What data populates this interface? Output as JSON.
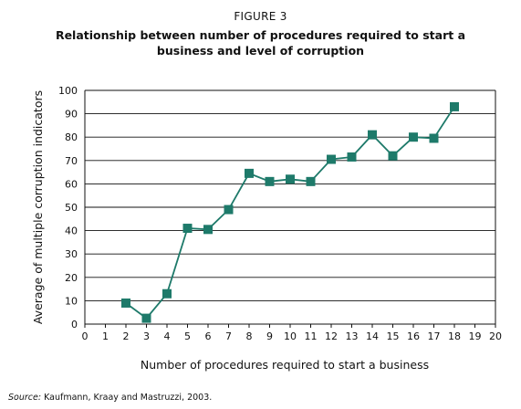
{
  "figure_label": "FIGURE 3",
  "title": "Relationship between number of procedures required to start a business and level of corruption",
  "source_label": "Source:",
  "source_text": "Kaufmann, Kraay and Mastruzzi, 2003.",
  "chart_data": {
    "type": "line",
    "title": "Relationship between number of procedures required to start a business and level of corruption",
    "xlabel": "Number of procedures required to start a business",
    "ylabel": "Average of multiple corruption indicators",
    "xlim": [
      0,
      20
    ],
    "ylim": [
      0,
      100
    ],
    "x_ticks": [
      0,
      1,
      2,
      3,
      4,
      5,
      6,
      7,
      8,
      9,
      10,
      11,
      12,
      13,
      14,
      15,
      16,
      17,
      18,
      19,
      20
    ],
    "y_ticks": [
      0,
      10,
      20,
      30,
      40,
      50,
      60,
      70,
      80,
      90,
      100
    ],
    "grid": "horizontal",
    "series": [
      {
        "x": [
          2,
          3,
          4,
          5,
          6,
          7,
          8,
          9,
          10,
          11,
          12,
          13,
          14,
          15,
          16,
          17,
          18
        ],
        "y": [
          9,
          2.5,
          13,
          41,
          40.5,
          49,
          64.5,
          61,
          62,
          61,
          70.5,
          71.5,
          81,
          72,
          80,
          79.5,
          93
        ],
        "color": "#1e7a6a"
      }
    ]
  }
}
